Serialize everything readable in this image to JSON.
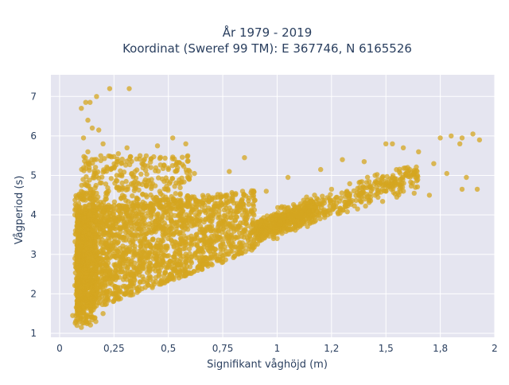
{
  "chart_data": {
    "type": "scatter",
    "title": "År 1979 - 2019",
    "subtitle": "Koordinat (Sweref 99 TM): E 367746, N 6165526",
    "xlabel": "Signifikant våghöjd (m)",
    "ylabel": "Vågperiod (s)",
    "xlim": [
      -0.04,
      2.0
    ],
    "ylim": [
      0.9,
      7.55
    ],
    "xticks": [
      0,
      0.25,
      0.5,
      0.75,
      1,
      1.25,
      1.5,
      1.75,
      2
    ],
    "xtick_labels": [
      "0",
      "0,25",
      "0,5",
      "0,75",
      "1",
      "1,2",
      "1,5",
      "1,8",
      "2"
    ],
    "yticks": [
      1,
      2,
      3,
      4,
      5,
      6,
      7
    ],
    "ytick_labels": [
      "1",
      "2",
      "3",
      "4",
      "5",
      "6",
      "7"
    ],
    "grid": true,
    "legend": "none",
    "marker_color": "#d4a520",
    "background_color": "#e5e5f0",
    "sample_points": [
      [
        0.1,
        6.7
      ],
      [
        0.12,
        6.85
      ],
      [
        0.14,
        6.85
      ],
      [
        0.17,
        7.0
      ],
      [
        0.23,
        7.2
      ],
      [
        0.32,
        7.2
      ],
      [
        0.13,
        6.4
      ],
      [
        0.15,
        6.2
      ],
      [
        0.18,
        6.15
      ],
      [
        0.11,
        5.95
      ],
      [
        0.2,
        5.8
      ],
      [
        0.13,
        5.6
      ],
      [
        0.27,
        5.55
      ],
      [
        0.31,
        5.7
      ],
      [
        0.52,
        5.95
      ],
      [
        0.58,
        5.8
      ],
      [
        0.45,
        5.75
      ],
      [
        0.37,
        5.5
      ],
      [
        0.42,
        5.2
      ],
      [
        0.62,
        5.05
      ],
      [
        0.78,
        5.1
      ],
      [
        0.85,
        5.45
      ],
      [
        1.05,
        4.95
      ],
      [
        1.2,
        5.15
      ],
      [
        1.3,
        5.4
      ],
      [
        1.5,
        5.8
      ],
      [
        1.53,
        5.8
      ],
      [
        1.58,
        5.7
      ],
      [
        1.65,
        5.6
      ],
      [
        1.75,
        5.95
      ],
      [
        1.8,
        6.0
      ],
      [
        1.85,
        5.95
      ],
      [
        1.9,
        6.05
      ],
      [
        1.93,
        5.9
      ],
      [
        1.84,
        5.8
      ],
      [
        1.72,
        5.3
      ],
      [
        1.78,
        5.05
      ],
      [
        1.87,
        4.95
      ],
      [
        1.92,
        4.65
      ],
      [
        1.85,
        4.65
      ],
      [
        1.7,
        4.5
      ],
      [
        1.63,
        4.55
      ],
      [
        1.55,
        4.45
      ],
      [
        1.5,
        4.6
      ],
      [
        1.6,
        5.2
      ],
      [
        1.45,
        5.0
      ],
      [
        1.4,
        5.35
      ],
      [
        1.25,
        4.65
      ],
      [
        0.06,
        1.45
      ],
      [
        0.08,
        1.2
      ],
      [
        0.1,
        1.15
      ],
      [
        0.09,
        1.6
      ],
      [
        0.12,
        1.3
      ],
      [
        0.2,
        1.5
      ],
      [
        0.3,
        2.0
      ],
      [
        0.5,
        2.4
      ],
      [
        0.75,
        2.9
      ],
      [
        1.0,
        3.4
      ],
      [
        0.95,
        4.6
      ],
      [
        0.7,
        4.4
      ]
    ]
  }
}
